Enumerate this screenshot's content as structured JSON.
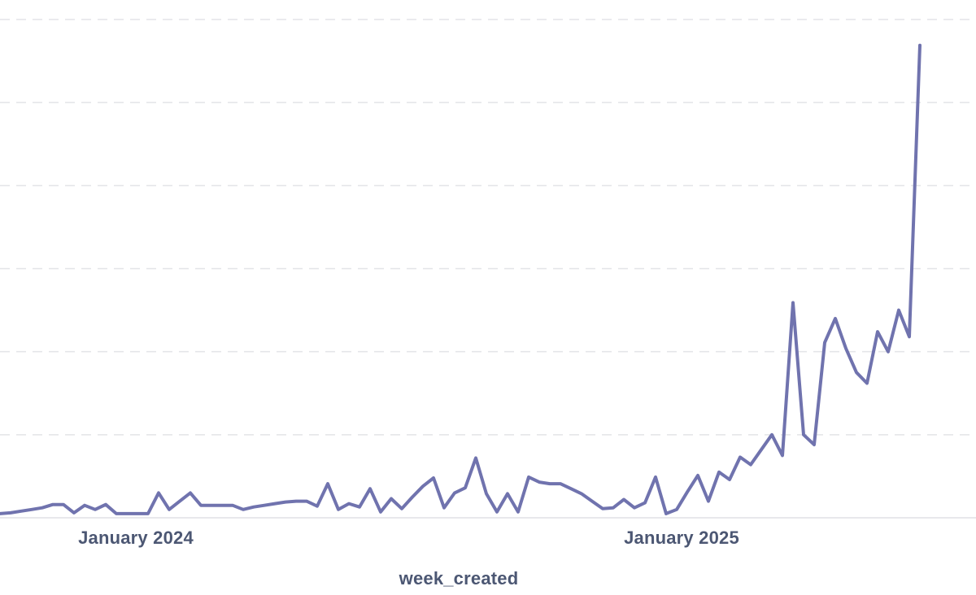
{
  "chart_data": {
    "type": "line",
    "title": "",
    "xlabel": "week_created",
    "ylabel": "",
    "x_tick_labels": [
      "January 2024",
      "January 2025"
    ],
    "y_gridline_values": [
      0,
      100,
      200,
      300,
      400,
      500,
      600
    ],
    "ylim": [
      0,
      623
    ],
    "grid": "horizontal-dashed",
    "legend": "none",
    "series_name": "count per week_created",
    "x": [
      "2023-10-02",
      "2023-10-09",
      "2023-10-16",
      "2023-10-23",
      "2023-10-30",
      "2023-11-06",
      "2023-11-13",
      "2023-11-20",
      "2023-11-27",
      "2023-12-04",
      "2023-12-11",
      "2023-12-18",
      "2023-12-25",
      "2024-01-01",
      "2024-01-08",
      "2024-01-15",
      "2024-01-22",
      "2024-01-29",
      "2024-02-05",
      "2024-02-12",
      "2024-02-19",
      "2024-02-26",
      "2024-03-04",
      "2024-03-11",
      "2024-03-18",
      "2024-03-25",
      "2024-04-01",
      "2024-04-08",
      "2024-04-15",
      "2024-04-22",
      "2024-04-29",
      "2024-05-06",
      "2024-05-13",
      "2024-05-20",
      "2024-05-27",
      "2024-06-03",
      "2024-06-10",
      "2024-06-17",
      "2024-06-24",
      "2024-07-01",
      "2024-07-08",
      "2024-07-15",
      "2024-07-22",
      "2024-07-29",
      "2024-08-05",
      "2024-08-12",
      "2024-08-19",
      "2024-08-26",
      "2024-09-02",
      "2024-09-09",
      "2024-09-16",
      "2024-09-23",
      "2024-09-30",
      "2024-10-07",
      "2024-10-14",
      "2024-10-21",
      "2024-10-28",
      "2024-11-04",
      "2024-11-11",
      "2024-11-18",
      "2024-11-25",
      "2024-12-02",
      "2024-12-09",
      "2024-12-16",
      "2024-12-23",
      "2024-12-30",
      "2025-01-06",
      "2025-01-13",
      "2025-01-20",
      "2025-01-27",
      "2025-02-03",
      "2025-02-10",
      "2025-02-17",
      "2025-02-24",
      "2025-03-03",
      "2025-03-10",
      "2025-03-17",
      "2025-03-24",
      "2025-03-31",
      "2025-04-07",
      "2025-04-14",
      "2025-04-21",
      "2025-04-28",
      "2025-05-05",
      "2025-05-12",
      "2025-05-19",
      "2025-05-26",
      "2025-06-02"
    ],
    "values": [
      5,
      6,
      8,
      10,
      12,
      16,
      16,
      6,
      15,
      10,
      16,
      5,
      5,
      5,
      5,
      30,
      10,
      20,
      30,
      15,
      15,
      15,
      15,
      10,
      13,
      15,
      17,
      19,
      20,
      20,
      14,
      41,
      10,
      17,
      13,
      35,
      7,
      23,
      11,
      25,
      38,
      48,
      12,
      30,
      36,
      72,
      29,
      7,
      29,
      7,
      49,
      43,
      41,
      41,
      35,
      29,
      20,
      11,
      12,
      22,
      12,
      18,
      49,
      5,
      10,
      31,
      51,
      20,
      55,
      46,
      73,
      64,
      82,
      100,
      75,
      259,
      100,
      88,
      211,
      240,
      204,
      175,
      162,
      224,
      200,
      250,
      218,
      569
    ]
  },
  "colors": {
    "line": "#7073ae",
    "gridline": "#e3e4e8",
    "axis_line": "#e0e1e5",
    "label_text": "#4c5773",
    "background": "#ffffff"
  }
}
